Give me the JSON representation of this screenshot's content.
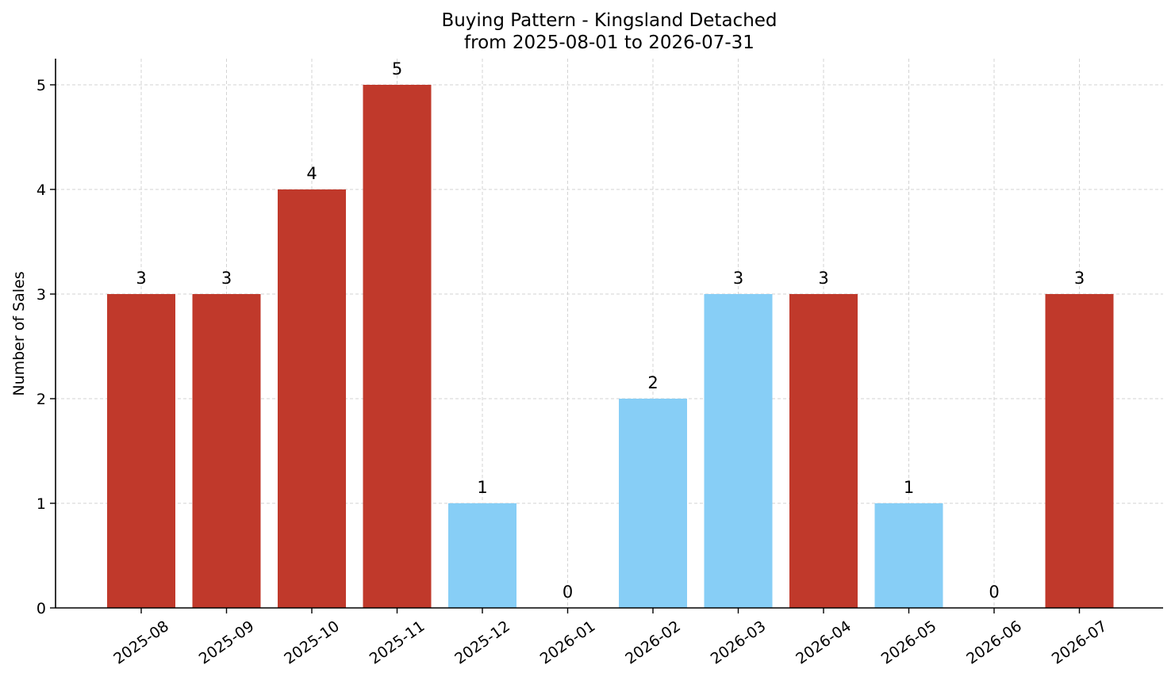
{
  "chart_data": {
    "type": "bar",
    "title": "Buying Pattern - Kingsland Detached",
    "subtitle": "from 2025-08-01 to 2026-07-31",
    "xlabel": "",
    "ylabel": "Number of Sales",
    "categories": [
      "2025-08",
      "2025-09",
      "2025-10",
      "2025-11",
      "2025-12",
      "2026-01",
      "2026-02",
      "2026-03",
      "2026-04",
      "2026-05",
      "2026-06",
      "2026-07"
    ],
    "values": [
      3,
      3,
      4,
      5,
      1,
      0,
      2,
      3,
      3,
      1,
      0,
      3
    ],
    "value_labels": [
      "3",
      "3",
      "4",
      "5",
      "1",
      "0",
      "2",
      "3",
      "3",
      "1",
      "0",
      "3"
    ],
    "bar_colors": [
      "#c0392b",
      "#c0392b",
      "#c0392b",
      "#c0392b",
      "#87cef6",
      "#87cef6",
      "#87cef6",
      "#87cef6",
      "#c0392b",
      "#87cef6",
      "#87cef6",
      "#c0392b"
    ],
    "ylim": [
      0,
      5.25
    ],
    "yticks": [
      "0",
      "1",
      "2",
      "3",
      "4",
      "5"
    ],
    "grid": true,
    "legend": "none"
  }
}
